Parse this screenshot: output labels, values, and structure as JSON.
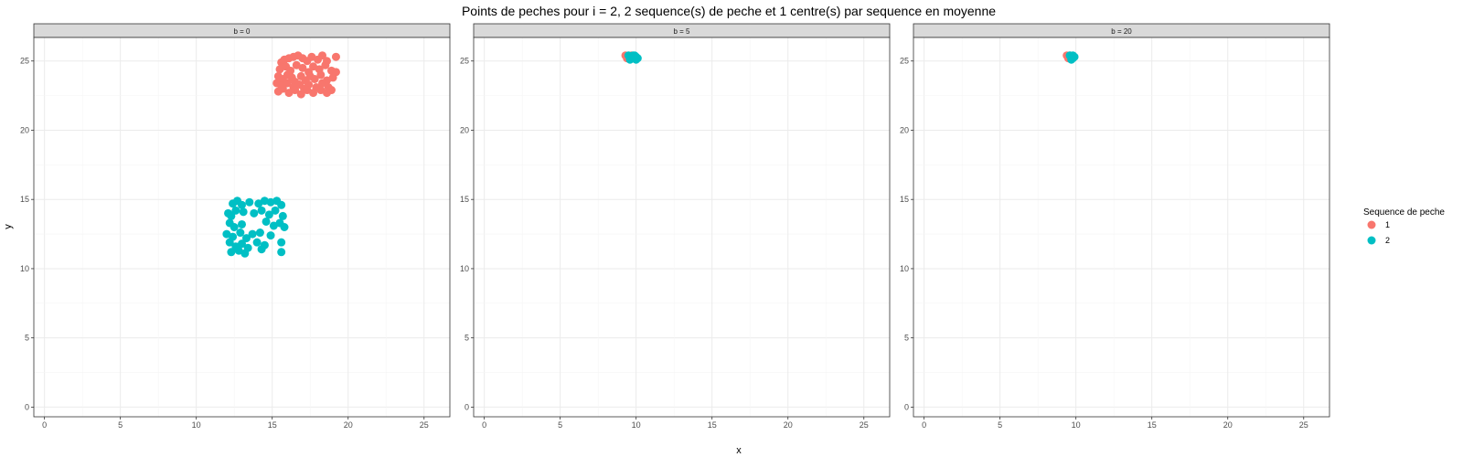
{
  "chart_data": {
    "type": "scatter",
    "title": "Points de peches pour i = 2, 2 sequence(s) de peche et 1 centre(s) par sequence en moyenne",
    "xlabel": "x",
    "ylabel": "y",
    "xlim": [
      -0.7,
      26.7
    ],
    "ylim": [
      -0.7,
      26.7
    ],
    "x_ticks": [
      "0",
      "5",
      "10",
      "15",
      "20",
      "25"
    ],
    "y_ticks": [
      "0",
      "5",
      "10",
      "15",
      "20",
      "25"
    ],
    "grid": true,
    "legend": {
      "title": "Sequence de peche",
      "position": "right",
      "entries": [
        {
          "label": "1",
          "color": "#F8766D"
        },
        {
          "label": "2",
          "color": "#00BFC4"
        }
      ]
    },
    "panels": [
      {
        "label": "b = 0",
        "series": [
          {
            "name": "1",
            "color": "#F8766D",
            "points": [
              [
                15.6,
                24.9
              ],
              [
                15.8,
                25.1
              ],
              [
                16.1,
                25.2
              ],
              [
                16.4,
                25.3
              ],
              [
                16.7,
                25.4
              ],
              [
                17.0,
                25.2
              ],
              [
                17.3,
                25.0
              ],
              [
                17.6,
                25.3
              ],
              [
                18.0,
                25.1
              ],
              [
                18.3,
                25.4
              ],
              [
                18.6,
                25.0
              ],
              [
                19.2,
                25.3
              ],
              [
                15.5,
                24.4
              ],
              [
                15.9,
                24.6
              ],
              [
                16.2,
                24.3
              ],
              [
                16.6,
                24.7
              ],
              [
                17.0,
                24.5
              ],
              [
                17.4,
                24.2
              ],
              [
                17.7,
                24.6
              ],
              [
                18.1,
                24.4
              ],
              [
                18.5,
                24.7
              ],
              [
                18.9,
                24.3
              ],
              [
                19.2,
                24.2
              ],
              [
                15.4,
                23.9
              ],
              [
                15.7,
                23.7
              ],
              [
                16.0,
                24.0
              ],
              [
                16.3,
                23.8
              ],
              [
                16.5,
                23.5
              ],
              [
                16.9,
                23.9
              ],
              [
                17.2,
                23.6
              ],
              [
                17.5,
                23.9
              ],
              [
                17.8,
                23.7
              ],
              [
                18.2,
                24.0
              ],
              [
                18.6,
                23.6
              ],
              [
                19.0,
                23.8
              ],
              [
                15.3,
                23.4
              ],
              [
                15.6,
                23.2
              ],
              [
                16.0,
                23.4
              ],
              [
                16.4,
                23.1
              ],
              [
                16.8,
                23.3
              ],
              [
                17.1,
                23.0
              ],
              [
                17.4,
                23.3
              ],
              [
                17.9,
                23.1
              ],
              [
                18.3,
                23.4
              ],
              [
                18.7,
                23.1
              ],
              [
                15.4,
                22.8
              ],
              [
                15.7,
                23.0
              ],
              [
                16.1,
                22.7
              ],
              [
                16.5,
                22.9
              ],
              [
                16.9,
                22.6
              ],
              [
                17.3,
                22.9
              ],
              [
                17.7,
                22.7
              ],
              [
                18.2,
                22.9
              ],
              [
                18.6,
                22.7
              ],
              [
                18.9,
                22.9
              ]
            ]
          },
          {
            "name": "2",
            "color": "#00BFC4",
            "points": [
              [
                12.4,
                14.7
              ],
              [
                12.7,
                14.9
              ],
              [
                13.0,
                14.6
              ],
              [
                13.5,
                14.8
              ],
              [
                14.1,
                14.7
              ],
              [
                14.5,
                14.9
              ],
              [
                14.9,
                14.8
              ],
              [
                15.3,
                14.9
              ],
              [
                15.6,
                14.6
              ],
              [
                12.1,
                14.0
              ],
              [
                12.3,
                13.8
              ],
              [
                12.6,
                14.2
              ],
              [
                13.1,
                14.1
              ],
              [
                13.8,
                14.0
              ],
              [
                14.3,
                14.2
              ],
              [
                14.8,
                13.9
              ],
              [
                15.2,
                14.2
              ],
              [
                15.7,
                13.8
              ],
              [
                12.2,
                13.3
              ],
              [
                12.5,
                13.0
              ],
              [
                13.0,
                13.2
              ],
              [
                14.6,
                13.4
              ],
              [
                15.1,
                13.1
              ],
              [
                15.5,
                13.3
              ],
              [
                15.8,
                13.0
              ],
              [
                12.0,
                12.5
              ],
              [
                12.4,
                12.3
              ],
              [
                12.9,
                12.6
              ],
              [
                13.3,
                12.2
              ],
              [
                13.7,
                12.5
              ],
              [
                14.2,
                12.6
              ],
              [
                14.9,
                12.4
              ],
              [
                12.2,
                11.9
              ],
              [
                12.6,
                11.6
              ],
              [
                13.0,
                11.8
              ],
              [
                13.4,
                11.5
              ],
              [
                14.0,
                11.9
              ],
              [
                14.5,
                11.7
              ],
              [
                15.6,
                11.9
              ],
              [
                12.3,
                11.2
              ],
              [
                12.8,
                11.3
              ],
              [
                13.2,
                11.1
              ],
              [
                14.3,
                11.4
              ],
              [
                15.6,
                11.2
              ]
            ]
          }
        ]
      },
      {
        "label": "b = 5",
        "series": [
          {
            "name": "1",
            "color": "#F8766D",
            "points": [
              [
                9.3,
                25.4
              ],
              [
                9.5,
                25.3
              ],
              [
                9.4,
                25.2
              ],
              [
                9.7,
                25.4
              ],
              [
                9.6,
                25.3
              ]
            ]
          },
          {
            "name": "2",
            "color": "#00BFC4",
            "points": [
              [
                9.5,
                25.4
              ],
              [
                9.7,
                25.3
              ],
              [
                9.8,
                25.2
              ],
              [
                9.9,
                25.4
              ],
              [
                10.0,
                25.3
              ],
              [
                10.1,
                25.2
              ],
              [
                9.6,
                25.1
              ],
              [
                9.8,
                25.4
              ],
              [
                10.0,
                25.1
              ],
              [
                9.9,
                25.2
              ]
            ]
          }
        ]
      },
      {
        "label": "b = 20",
        "series": [
          {
            "name": "1",
            "color": "#F8766D",
            "points": [
              [
                9.4,
                25.4
              ],
              [
                9.5,
                25.3
              ],
              [
                9.6,
                25.4
              ],
              [
                9.5,
                25.2
              ]
            ]
          },
          {
            "name": "2",
            "color": "#00BFC4",
            "points": [
              [
                9.6,
                25.4
              ],
              [
                9.7,
                25.3
              ],
              [
                9.8,
                25.2
              ],
              [
                9.9,
                25.3
              ],
              [
                9.7,
                25.1
              ],
              [
                9.8,
                25.4
              ]
            ]
          }
        ]
      }
    ]
  }
}
